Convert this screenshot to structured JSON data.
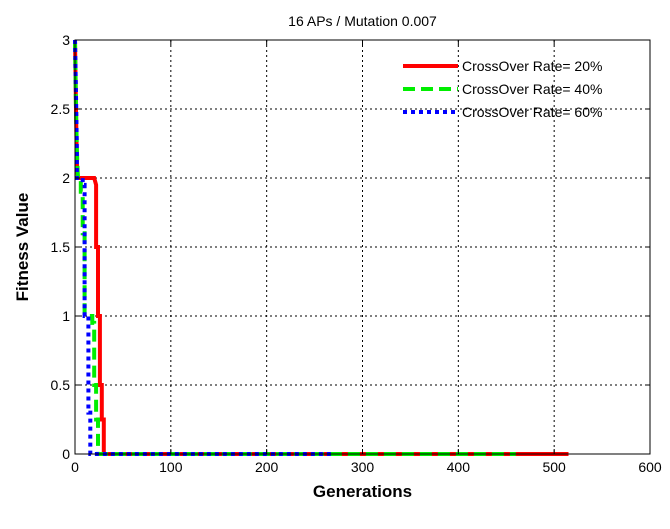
{
  "chart_data": {
    "type": "line",
    "title": "16 APs / Mutation 0.007",
    "xlabel": "Generations",
    "ylabel": "Fitness Value",
    "xlim": [
      0,
      600
    ],
    "ylim": [
      0,
      3
    ],
    "xticks": [
      0,
      100,
      200,
      300,
      400,
      500,
      600
    ],
    "yticks": [
      0,
      0.5,
      1,
      1.5,
      2,
      2.5,
      3
    ],
    "yticklabels": [
      "0",
      "0.5",
      "1",
      "1.5",
      "2",
      "2.5",
      "3"
    ],
    "grid": true,
    "legend_position": "top-right",
    "series": [
      {
        "name": "CrossOver Rate= 20%",
        "color": "#ff0000",
        "style": "solid",
        "x": [
          0,
          1,
          2,
          3,
          20,
          22,
          22,
          24,
          24,
          26,
          26,
          28,
          28,
          30,
          30,
          515
        ],
        "y": [
          3,
          2.5,
          2.1,
          2.0,
          2.0,
          1.95,
          1.5,
          1.5,
          1.0,
          1.0,
          0.5,
          0.5,
          0.25,
          0.25,
          0,
          0
        ]
      },
      {
        "name": "CrossOver Rate= 40%",
        "color": "#00ee00",
        "style": "dashed",
        "x": [
          0,
          1,
          2,
          3,
          6,
          6,
          8,
          8,
          10,
          10,
          18,
          18,
          20,
          20,
          22,
          22,
          24,
          24,
          460
        ],
        "y": [
          3,
          2.5,
          2.2,
          2.0,
          2.0,
          1.9,
          1.9,
          1.6,
          1.6,
          1.0,
          1.0,
          0.95,
          0.95,
          0.5,
          0.5,
          0.25,
          0.25,
          0,
          0
        ]
      },
      {
        "name": "CrossOver Rate= 60%",
        "color": "#0000ff",
        "style": "dotted",
        "x": [
          0,
          1,
          2,
          2,
          8,
          8,
          10,
          10,
          14,
          14,
          16,
          16,
          270
        ],
        "y": [
          3,
          2.6,
          2.2,
          2.0,
          2.0,
          1.95,
          1.95,
          1.0,
          1.0,
          0.3,
          0.3,
          0,
          0
        ]
      }
    ]
  }
}
